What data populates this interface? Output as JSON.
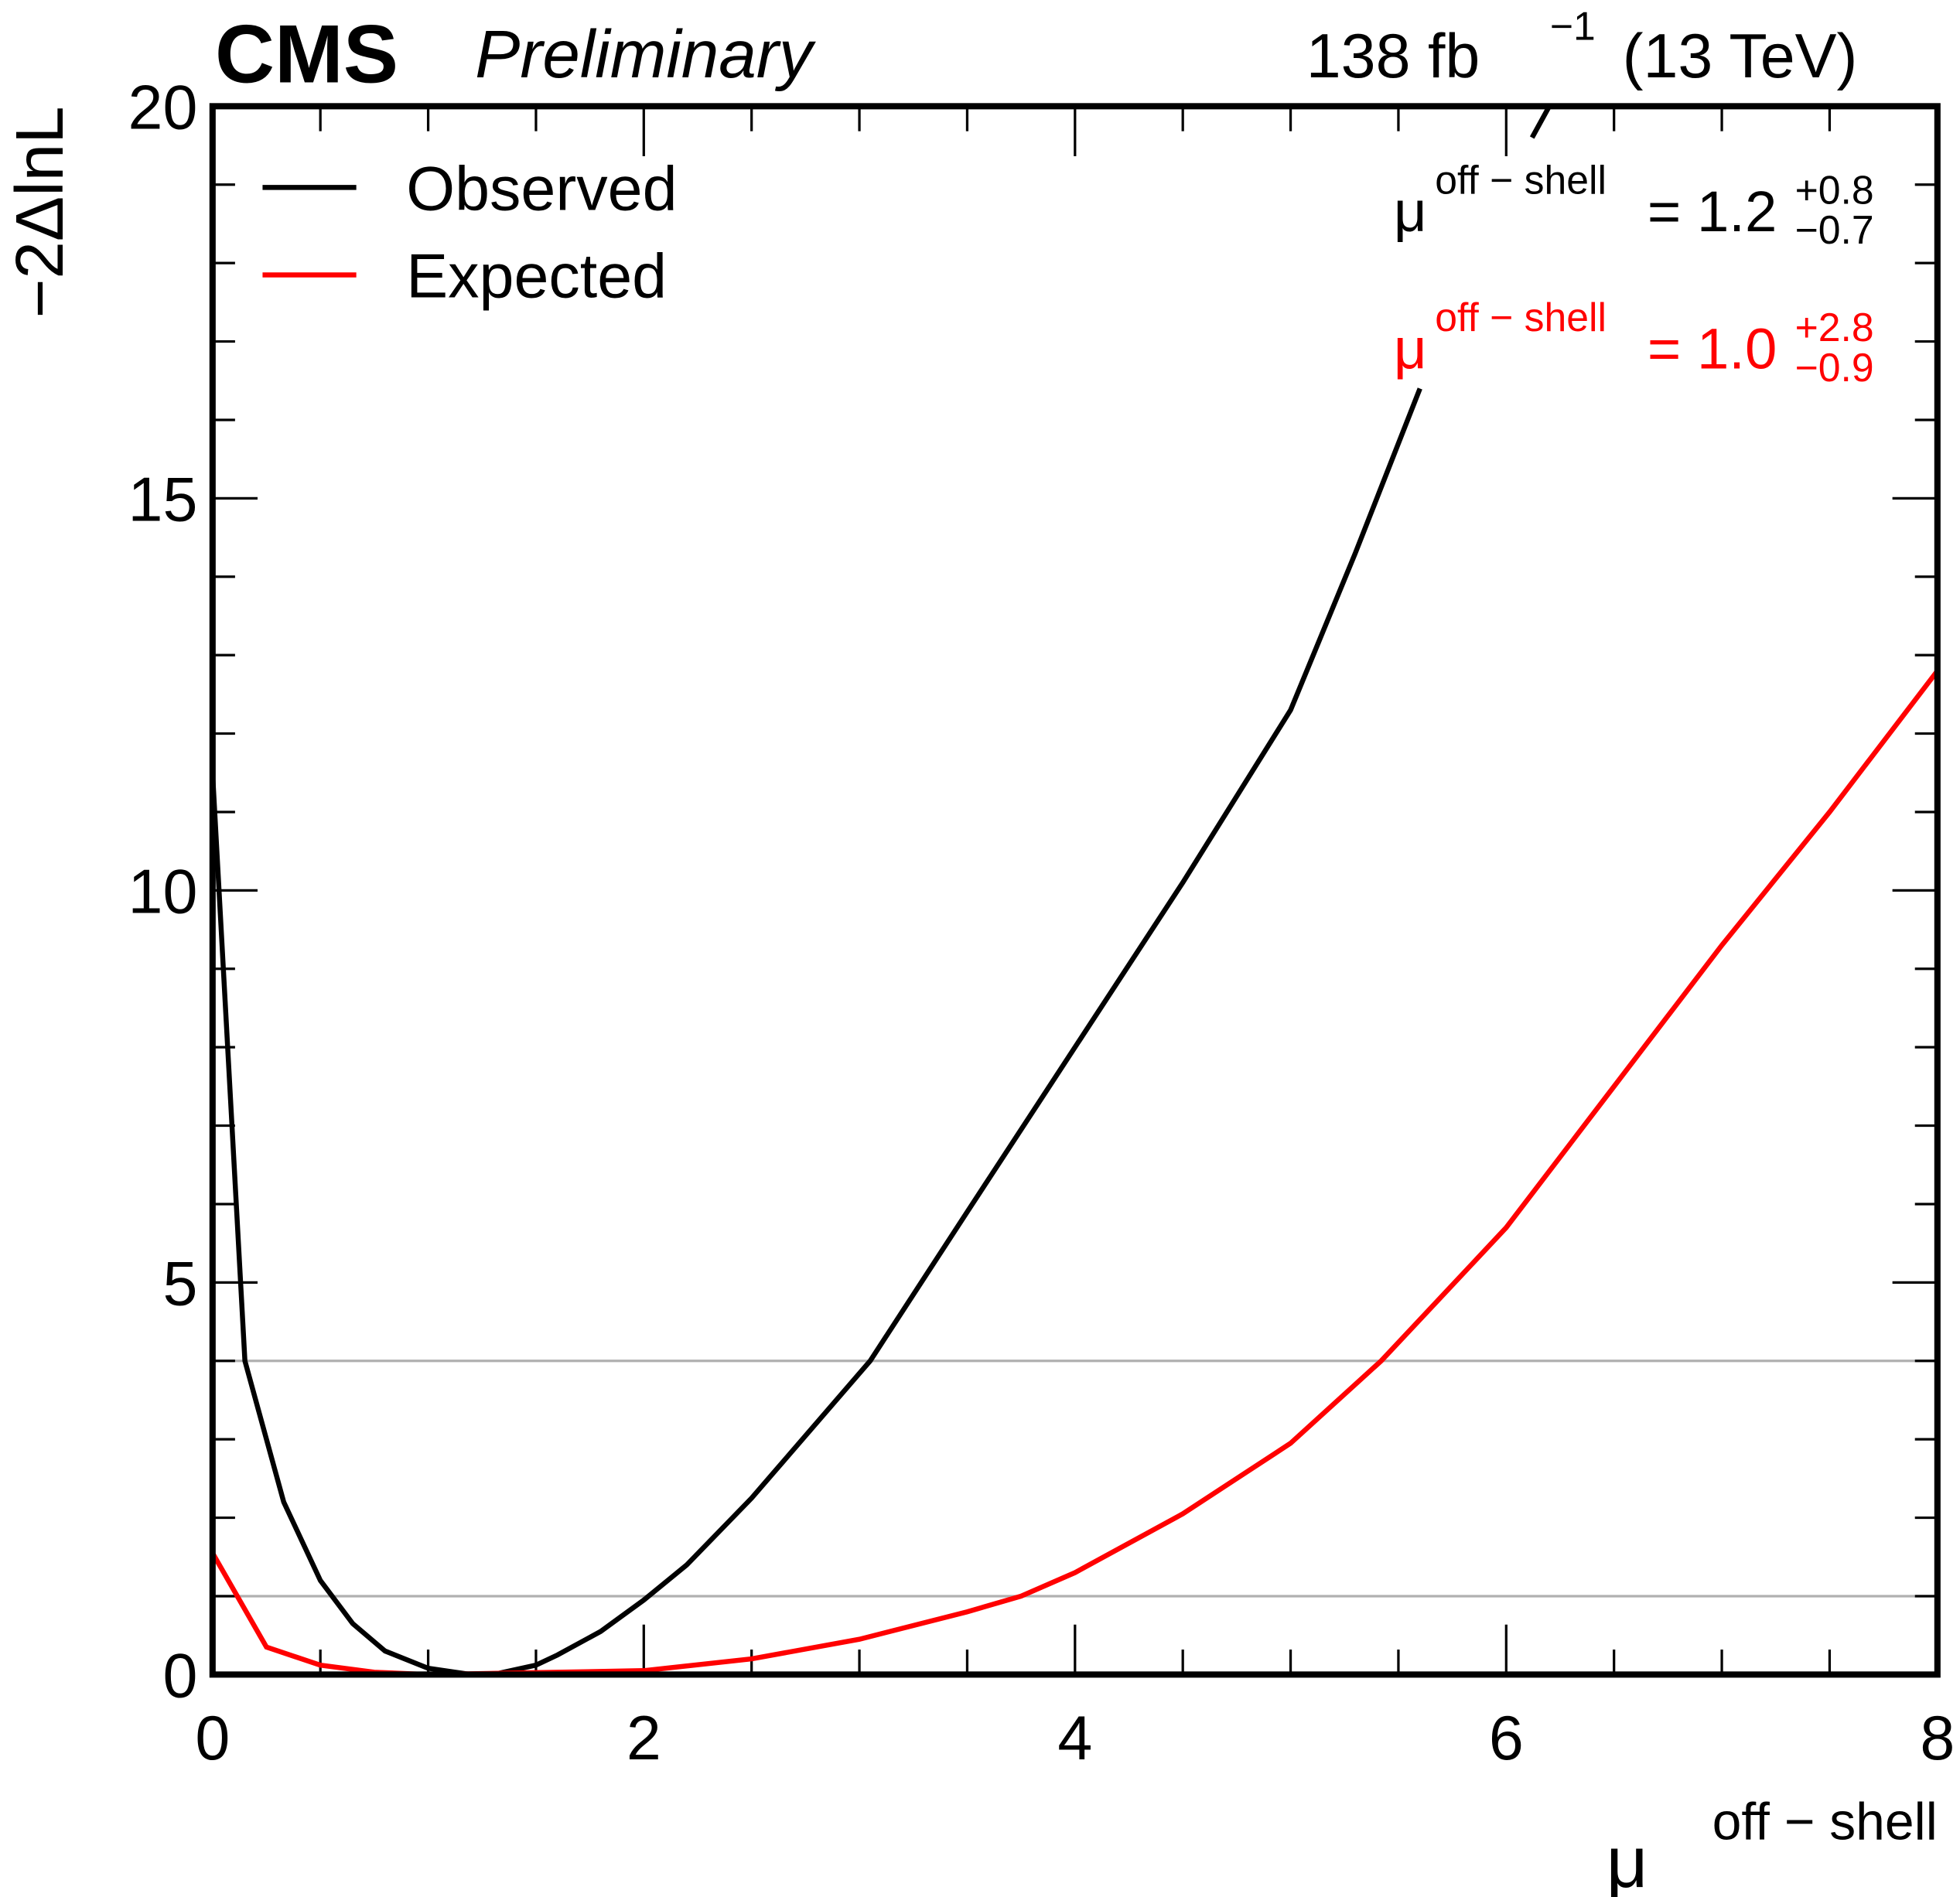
{
  "chart_data": {
    "type": "line",
    "header": {
      "experiment": "CMS",
      "status": "Preliminary",
      "lumi": "138 fb",
      "lumi_sup": "−1",
      "energy": "(13 TeV)"
    },
    "xlabel": {
      "main": "μ",
      "sup": "off − shell"
    },
    "ylabel": "−2ΔlnL",
    "xlim": [
      0,
      8
    ],
    "ylim": [
      0,
      20
    ],
    "xticks": [
      0,
      2,
      4,
      6,
      8
    ],
    "yticks": [
      0,
      5,
      10,
      15,
      20
    ],
    "xticks_minor": [
      0.5,
      1,
      1.5,
      2.5,
      3,
      3.5,
      4.5,
      5,
      5.5,
      6.5,
      7,
      7.5
    ],
    "yticks_minor": [
      1,
      2,
      3,
      4,
      6,
      7,
      8,
      9,
      11,
      12,
      13,
      14,
      16,
      17,
      18,
      19
    ],
    "hlines": [
      1,
      4
    ],
    "hline_color": "#b0b0b0",
    "legend": "upper left",
    "series": [
      {
        "name": "Observed",
        "color": "#000000",
        "x": [
          0,
          0.15,
          0.33,
          0.5,
          0.65,
          0.8,
          1.0,
          1.2,
          1.3,
          1.5,
          1.6,
          1.8,
          2.0,
          2.2,
          2.5,
          3.05,
          3.5,
          4.0,
          4.5,
          5.0,
          5.3,
          5.6,
          5.8,
          6.12,
          6.2
        ],
        "values": [
          11.5,
          4.0,
          2.2,
          1.2,
          0.65,
          0.3,
          0.08,
          0,
          0,
          0.12,
          0.25,
          0.55,
          0.95,
          1.4,
          2.25,
          4.0,
          5.9,
          8.0,
          10.1,
          12.3,
          14.3,
          16.4,
          null,
          19.6,
          20
        ],
        "annotation": {
          "main": "μ",
          "sup": "off − shell",
          "eq": "= 1.2",
          "up": "+0.8",
          "down": "−0.7"
        }
      },
      {
        "name": "Expected",
        "color": "#ff0000",
        "x": [
          0,
          0.25,
          0.5,
          0.75,
          1,
          2,
          2.5,
          3,
          3.5,
          3.75,
          4,
          4.5,
          5,
          5.42,
          6,
          6.5,
          7,
          7.5,
          8
        ],
        "values": [
          1.55,
          0.35,
          0.12,
          0.03,
          0,
          0.05,
          0.2,
          0.45,
          0.8,
          1.0,
          1.3,
          2.05,
          2.95,
          4.0,
          5.7,
          7.5,
          9.3,
          11.0,
          12.8
        ],
        "annotation": {
          "main": "μ",
          "sup": "off − shell",
          "eq": "= 1.0",
          "up": "+2.8",
          "down": "−0.9"
        }
      }
    ]
  }
}
